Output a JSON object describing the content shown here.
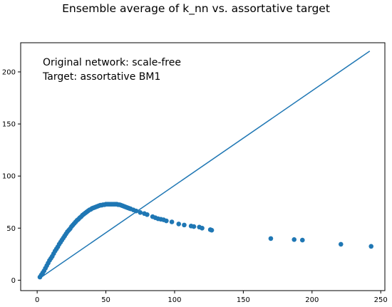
{
  "chart_data": {
    "type": "scatter",
    "title": "Ensemble average of k_nn vs. assortative target",
    "xlabel": "",
    "ylabel": "",
    "xlim": [
      -12,
      253
    ],
    "ylim": [
      -10,
      228
    ],
    "xticks": [
      0,
      50,
      100,
      150,
      200,
      250
    ],
    "yticks": [
      0,
      50,
      100,
      150,
      200
    ],
    "grid": false,
    "annotations": [
      "Original network: scale-free",
      "Target: assortative BM1"
    ],
    "colors": {
      "series": "#1f77b4",
      "axis": "#000000"
    },
    "line": {
      "x": [
        2,
        242
      ],
      "y": [
        2,
        220
      ]
    },
    "scatter": {
      "x": [
        2,
        3,
        4,
        5,
        6,
        7,
        8,
        9,
        10,
        11,
        12,
        13,
        14,
        15,
        16,
        17,
        18,
        19,
        20,
        21,
        22,
        23,
        24,
        25,
        26,
        27,
        28,
        29,
        30,
        31,
        32,
        33,
        34,
        35,
        36,
        37,
        38,
        39,
        40,
        41,
        42,
        43,
        44,
        45,
        46,
        47,
        48,
        49,
        50,
        51,
        52,
        53,
        54,
        55,
        56,
        57,
        58,
        59,
        60,
        61,
        62,
        63,
        64,
        65,
        66,
        67,
        68,
        70,
        72,
        75,
        78,
        80,
        84,
        86,
        88,
        90,
        92,
        94,
        98,
        103,
        107,
        112,
        114,
        118,
        120,
        126,
        127,
        170,
        187,
        193,
        221,
        243
      ],
      "y": [
        3,
        5,
        7,
        9,
        11.5,
        14,
        16.5,
        19,
        21,
        23,
        25.5,
        28,
        30,
        32,
        34.5,
        36.5,
        38.5,
        40.5,
        42.5,
        44.5,
        46.5,
        48,
        49.5,
        51.5,
        53,
        54.5,
        56,
        57.5,
        58.5,
        60,
        61,
        62.5,
        63.5,
        64.5,
        65.5,
        66.5,
        67.5,
        68,
        69,
        69.5,
        70,
        70.5,
        71,
        71.5,
        72,
        72,
        72.5,
        72.5,
        73,
        73,
        73,
        73,
        73,
        73,
        73,
        73,
        73,
        72.5,
        72.5,
        72,
        71.5,
        71,
        70.5,
        70,
        69.5,
        69,
        68.5,
        67.5,
        66.5,
        65,
        64,
        63,
        61,
        60,
        59,
        58.5,
        58,
        57,
        56,
        54,
        53,
        52,
        51.5,
        51,
        50,
        48.5,
        48,
        40,
        39,
        38.5,
        34.5,
        32.5
      ]
    }
  }
}
